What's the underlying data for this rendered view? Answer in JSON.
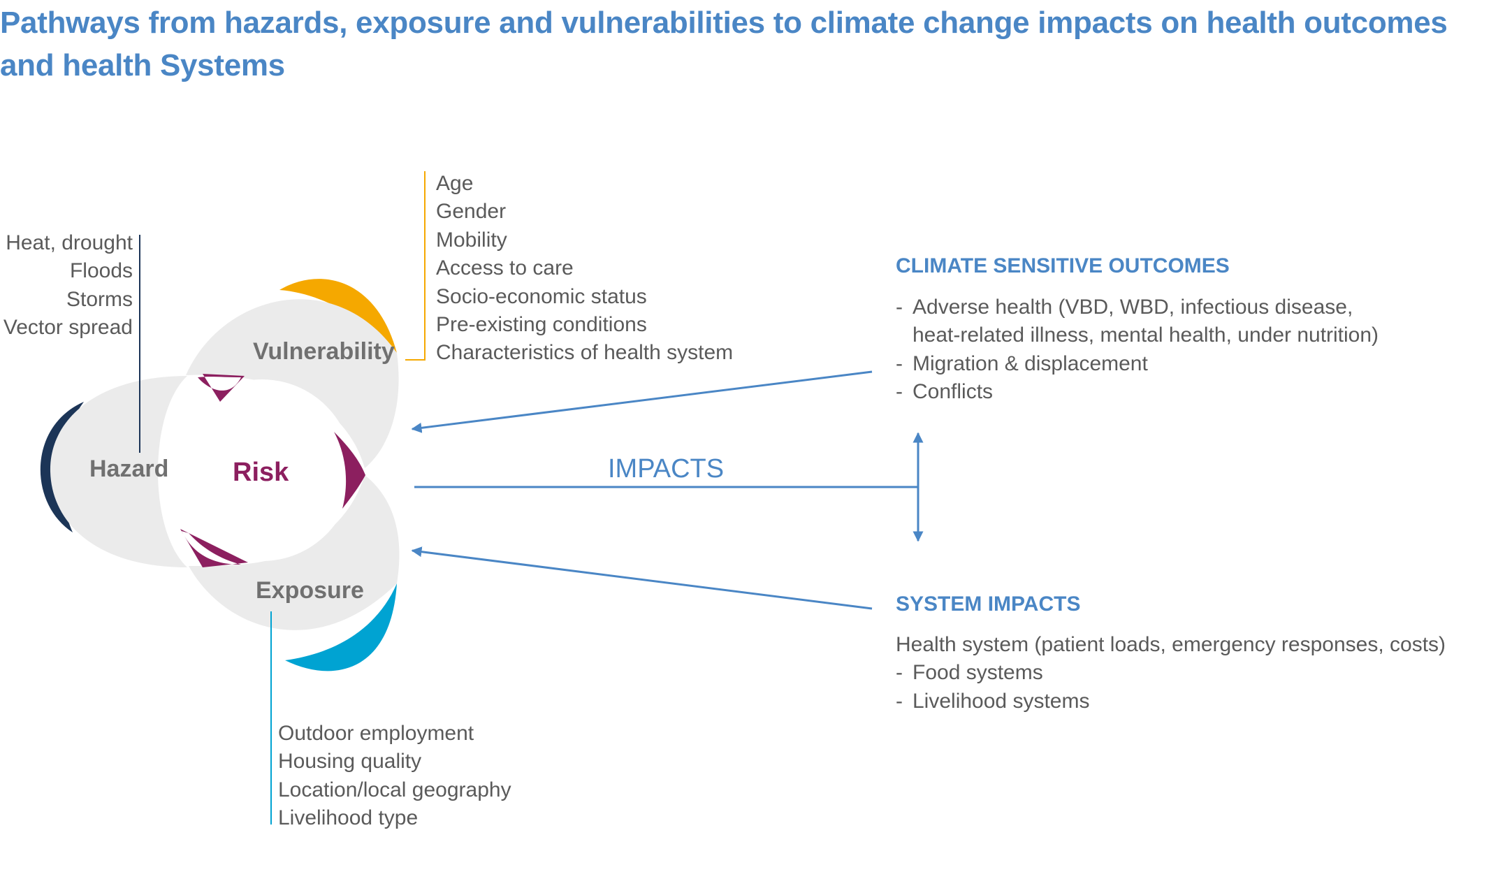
{
  "title": {
    "line1": "Pathways from hazards, exposure and vulnerabilities to climate change impacts on health outcomes",
    "line2": "and health Systems"
  },
  "venn": {
    "hazard": "Hazard",
    "vulnerability": "Vulnerability",
    "exposure": "Exposure",
    "risk": "Risk"
  },
  "hazard_factors": [
    "Heat, drought",
    "Floods",
    "Storms",
    "Vector spread"
  ],
  "vulnerability_factors": [
    "Age",
    "Gender",
    "Mobility",
    "Access to care",
    "Socio-economic status",
    "Pre-existing conditions",
    "Characteristics of health system"
  ],
  "exposure_factors": [
    "Outdoor employment",
    "Housing quality",
    "Location/local geography",
    "Livelihood type"
  ],
  "impacts_label": "IMPACTS",
  "climate_outcomes": {
    "heading": "CLIMATE SENSITIVE OUTCOMES",
    "item1_line1": "Adverse health (VBD, WBD, infectious disease,",
    "item1_line2": "heat-related illness, mental health, under nutrition)",
    "item2": "Migration & displacement",
    "item3": "Conflicts",
    "dash": "-"
  },
  "system_impacts": {
    "heading": "SYSTEM IMPACTS",
    "item1": "Health system (patient loads, emergency responses, costs)",
    "item2": "Food systems",
    "item3": "Livelihood systems",
    "dash": "-"
  },
  "colors": {
    "title_blue": "#4a86c5",
    "petal_gray": "#ebebeb",
    "hazard_navy": "#1c3557",
    "vulnerability_orange": "#f5a800",
    "exposure_cyan": "#00a3d2",
    "risk_maroon": "#8c1f5f",
    "text_gray": "#5a5a5a",
    "arrow_blue": "#4a86c5"
  }
}
